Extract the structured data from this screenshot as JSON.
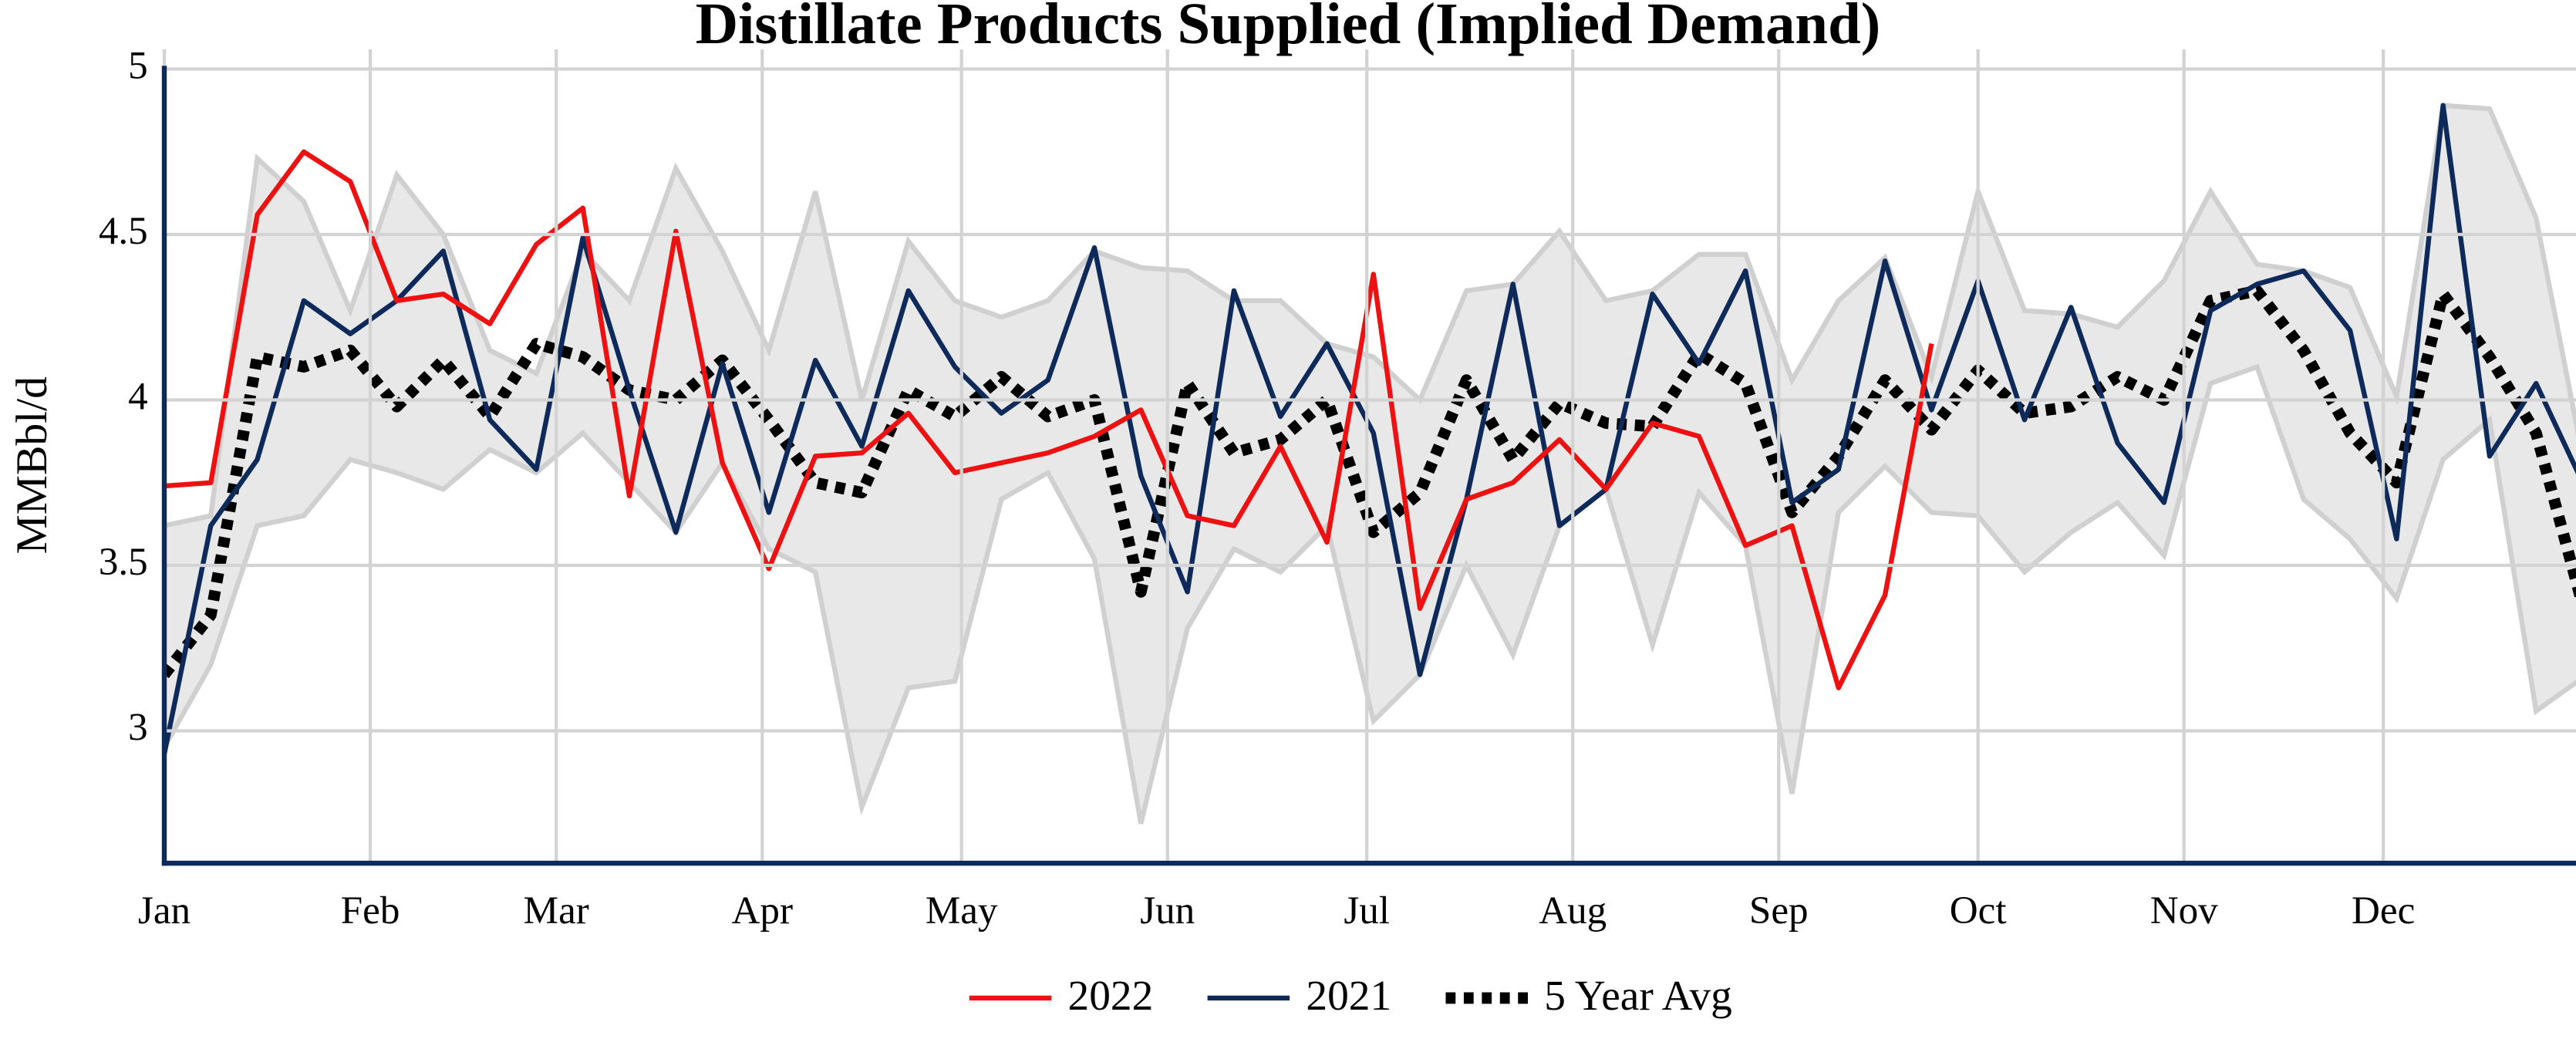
{
  "chart_data": {
    "type": "line",
    "title": "Distillate Products Supplied (Implied Demand)",
    "y_label": "MMBbl/d",
    "x_labels": [
      "Jan",
      "Feb",
      "Mar",
      "Apr",
      "May",
      "Jun",
      "Jul",
      "Aug",
      "Sep",
      "Oct",
      "Nov",
      "Dec"
    ],
    "ylim": [
      2.6,
      5
    ],
    "yticks": [
      3,
      3.5,
      4,
      4.5,
      5
    ],
    "grid": true,
    "legend": "bottom",
    "range": {
      "color": "#e8e8e8",
      "edge_color": "#d0d0d0",
      "upper": [
        3.62,
        3.65,
        4.73,
        4.6,
        4.27,
        4.68,
        4.5,
        4.15,
        4.08,
        4.45,
        4.3,
        4.7,
        4.45,
        4.15,
        4.63,
        4.0,
        4.48,
        4.3,
        4.25,
        4.3,
        4.45,
        4.4,
        4.39,
        4.3,
        4.3,
        4.17,
        4.13,
        4.0,
        4.33,
        4.35,
        4.51,
        4.3,
        4.33,
        4.44,
        4.44,
        4.06,
        4.3,
        4.43,
        4.07,
        4.63,
        4.27,
        4.26,
        4.22,
        4.36,
        4.63,
        4.41,
        4.39,
        4.34,
        4.01,
        4.89,
        4.88,
        4.55,
        3.83
      ],
      "lower": [
        2.95,
        3.2,
        3.62,
        3.65,
        3.82,
        3.78,
        3.73,
        3.85,
        3.78,
        3.9,
        3.75,
        3.6,
        3.81,
        3.55,
        3.48,
        2.77,
        3.13,
        3.15,
        3.7,
        3.78,
        3.52,
        2.72,
        3.31,
        3.55,
        3.48,
        3.62,
        3.03,
        3.17,
        3.5,
        3.23,
        3.62,
        3.73,
        3.26,
        3.72,
        3.56,
        2.81,
        3.66,
        3.8,
        3.66,
        3.65,
        3.48,
        3.6,
        3.69,
        3.53,
        4.05,
        4.1,
        3.7,
        3.58,
        3.4,
        3.82,
        3.94,
        3.06,
        3.16
      ]
    },
    "series": [
      {
        "name": "2022",
        "color": "#ee1111",
        "dash": false,
        "values": [
          3.74,
          3.75,
          4.56,
          4.75,
          4.66,
          4.3,
          4.32,
          4.23,
          4.47,
          4.58,
          3.71,
          4.51,
          3.81,
          3.49,
          3.83,
          3.84,
          3.96,
          3.78,
          3.81,
          3.84,
          3.89,
          3.97,
          3.65,
          3.62,
          3.86,
          3.57,
          4.38,
          3.37,
          3.7,
          3.75,
          3.88,
          3.73,
          3.93,
          3.89,
          3.56,
          3.62,
          3.13,
          3.41,
          4.17
        ]
      },
      {
        "name": "2021",
        "color": "#0d2a5a",
        "dash": false,
        "values": [
          2.93,
          3.62,
          3.82,
          4.3,
          4.2,
          4.3,
          4.45,
          3.94,
          3.79,
          4.49,
          4.03,
          3.6,
          4.11,
          3.66,
          4.12,
          3.86,
          4.33,
          4.1,
          3.96,
          4.06,
          4.46,
          3.77,
          3.42,
          4.33,
          3.95,
          4.17,
          3.9,
          3.17,
          3.7,
          4.35,
          3.62,
          3.73,
          4.32,
          4.11,
          4.39,
          3.69,
          3.79,
          4.42,
          3.97,
          4.36,
          3.94,
          4.28,
          3.87,
          3.69,
          4.27,
          4.35,
          4.39,
          4.21,
          3.58,
          4.89,
          3.83,
          4.05,
          3.75
        ]
      },
      {
        "name": "5 Year Avg",
        "color": "#000000",
        "dash": true,
        "values": [
          3.17,
          3.35,
          4.13,
          4.1,
          4.15,
          3.98,
          4.12,
          3.95,
          4.17,
          4.13,
          4.03,
          4.0,
          4.12,
          3.94,
          3.75,
          3.72,
          4.03,
          3.95,
          4.07,
          3.95,
          4.0,
          3.42,
          4.05,
          3.84,
          3.88,
          4.0,
          3.6,
          3.72,
          4.06,
          3.82,
          3.99,
          3.93,
          3.92,
          4.14,
          4.05,
          3.66,
          3.83,
          4.06,
          3.91,
          4.09,
          3.96,
          3.98,
          4.07,
          4.0,
          4.3,
          4.33,
          4.15,
          3.9,
          3.75,
          4.32,
          4.13,
          3.9,
          3.38
        ]
      }
    ]
  }
}
